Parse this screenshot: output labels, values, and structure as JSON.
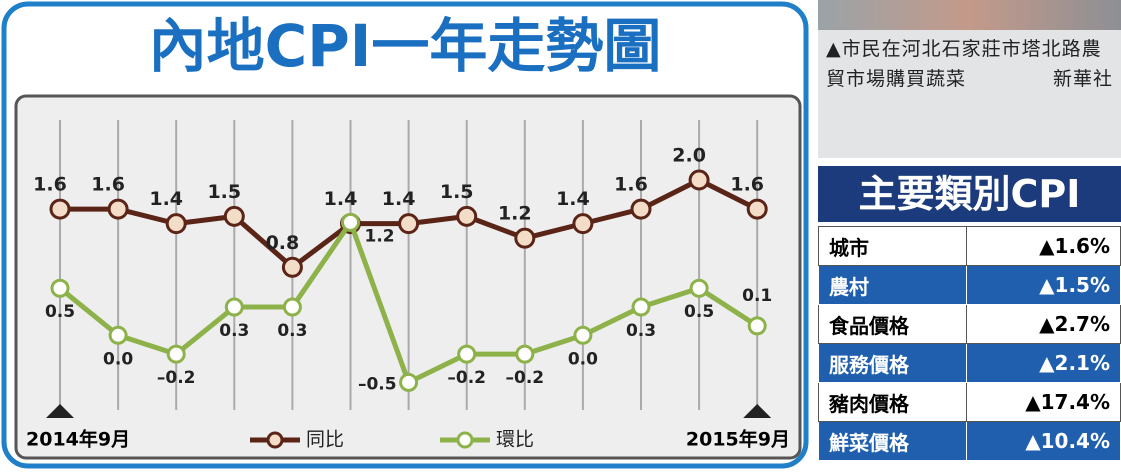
{
  "chart_data": {
    "type": "line",
    "title": "內地CPI一年走勢圖",
    "categories": [
      "2014年9月",
      null,
      null,
      null,
      null,
      null,
      null,
      null,
      null,
      null,
      null,
      null,
      "2015年9月"
    ],
    "ylim": [
      -1.3,
      3.1
    ],
    "y2lim": [
      -0.9,
      2.5
    ],
    "series": [
      {
        "name": "同比",
        "color": "#5a2417",
        "values": [
          1.6,
          1.6,
          1.4,
          1.5,
          0.8,
          1.4,
          1.4,
          1.5,
          1.2,
          1.4,
          1.6,
          2.0,
          1.6
        ],
        "value_labels": [
          "1.6",
          "1.6",
          "1.4",
          "1.5",
          "0.8",
          "1.4",
          "1.4",
          "1.5",
          "1.2",
          "1.4",
          "1.6",
          "2.0",
          "1.6"
        ]
      },
      {
        "name": "環比",
        "color": "#8db24a",
        "axis": "y2",
        "values": [
          0.5,
          0.0,
          -0.2,
          0.3,
          0.3,
          1.2,
          -0.5,
          -0.2,
          -0.2,
          0.0,
          0.3,
          0.5,
          0.1
        ],
        "value_labels": [
          "0.5",
          "0.0",
          "–0.2",
          "0.3",
          "0.3",
          "1.2",
          "–0.5",
          "–0.2",
          "–0.2",
          "0.0",
          "0.3",
          "0.5",
          "0.1"
        ]
      }
    ]
  },
  "caption": {
    "text": "▲市民在河北石家莊市塔北路農貿市場購買蔬菜",
    "credit": "新華社"
  },
  "table": {
    "title": "主要類別CPI",
    "rows": [
      [
        "城市",
        "▲1.6%"
      ],
      [
        "農村",
        "▲1.5%"
      ],
      [
        "食品價格",
        "▲2.7%"
      ],
      [
        "服務價格",
        "▲2.1%"
      ],
      [
        "豬肉價格",
        "▲17.4%"
      ],
      [
        "鮮菜價格",
        "▲10.4%"
      ]
    ]
  }
}
